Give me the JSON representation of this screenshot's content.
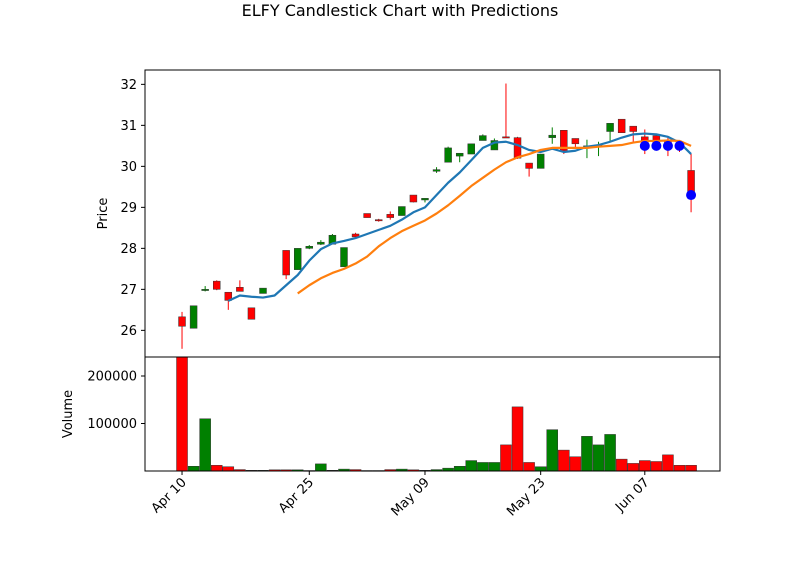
{
  "chart_data": {
    "type": "candlestick",
    "title": "ELFY Candlestick Chart with Predictions",
    "price_panel": {
      "ylabel": "Price",
      "ylim": [
        25.35,
        32.35
      ],
      "yticks": [
        26,
        27,
        28,
        29,
        30,
        31,
        32
      ],
      "up_color": "#008000",
      "down_color": "#ff0000",
      "candles": [
        {
          "x": 0,
          "open": 26.33,
          "close": 26.1,
          "high": 26.45,
          "low": 25.55
        },
        {
          "x": 1,
          "open": 26.05,
          "close": 26.6,
          "high": 26.6,
          "low": 26.05
        },
        {
          "x": 2,
          "open": 26.98,
          "close": 27.0,
          "high": 27.08,
          "low": 26.95
        },
        {
          "x": 3,
          "open": 27.2,
          "close": 27.0,
          "high": 27.22,
          "low": 26.98
        },
        {
          "x": 4,
          "open": 26.93,
          "close": 26.73,
          "high": 26.93,
          "low": 26.5
        },
        {
          "x": 5,
          "open": 27.05,
          "close": 26.95,
          "high": 27.22,
          "low": 26.95
        },
        {
          "x": 6,
          "open": 26.55,
          "close": 26.27,
          "high": 26.55,
          "low": 26.27
        },
        {
          "x": 7,
          "open": 26.9,
          "close": 27.03,
          "high": 27.03,
          "low": 26.9
        },
        {
          "x": 9,
          "open": 27.95,
          "close": 27.35,
          "high": 27.95,
          "low": 27.25
        },
        {
          "x": 10,
          "open": 27.48,
          "close": 28.0,
          "high": 28.0,
          "low": 27.48
        },
        {
          "x": 11,
          "open": 28.0,
          "close": 28.05,
          "high": 28.08,
          "low": 27.98
        },
        {
          "x": 12,
          "open": 28.1,
          "close": 28.15,
          "high": 28.2,
          "low": 28.08
        },
        {
          "x": 13,
          "open": 28.1,
          "close": 28.32,
          "high": 28.35,
          "low": 28.1
        },
        {
          "x": 14,
          "open": 27.55,
          "close": 28.02,
          "high": 28.02,
          "low": 27.55
        },
        {
          "x": 15,
          "open": 28.35,
          "close": 28.28,
          "high": 28.38,
          "low": 28.25
        },
        {
          "x": 16,
          "open": 28.85,
          "close": 28.75,
          "high": 28.85,
          "low": 28.75
        },
        {
          "x": 17,
          "open": 28.7,
          "close": 28.68,
          "high": 28.72,
          "low": 28.65
        },
        {
          "x": 18,
          "open": 28.83,
          "close": 28.75,
          "high": 28.9,
          "low": 28.7
        },
        {
          "x": 19,
          "open": 28.8,
          "close": 29.02,
          "high": 29.02,
          "low": 28.8
        },
        {
          "x": 20,
          "open": 29.3,
          "close": 29.13,
          "high": 29.3,
          "low": 29.12
        },
        {
          "x": 21,
          "open": 29.18,
          "close": 29.22,
          "high": 29.22,
          "low": 29.12
        },
        {
          "x": 22,
          "open": 29.88,
          "close": 29.92,
          "high": 29.98,
          "low": 29.84
        },
        {
          "x": 23,
          "open": 30.1,
          "close": 30.45,
          "high": 30.48,
          "low": 30.1
        },
        {
          "x": 24,
          "open": 30.25,
          "close": 30.32,
          "high": 30.32,
          "low": 30.1
        },
        {
          "x": 25,
          "open": 30.3,
          "close": 30.55,
          "high": 30.55,
          "low": 30.3
        },
        {
          "x": 26,
          "open": 30.63,
          "close": 30.75,
          "high": 30.78,
          "low": 30.63
        },
        {
          "x": 27,
          "open": 30.4,
          "close": 30.63,
          "high": 30.68,
          "low": 30.4
        },
        {
          "x": 28,
          "open": 30.72,
          "close": 30.7,
          "high": 32.02,
          "low": 30.7
        },
        {
          "x": 29,
          "open": 30.7,
          "close": 30.2,
          "high": 30.72,
          "low": 30.18
        },
        {
          "x": 30,
          "open": 30.08,
          "close": 29.95,
          "high": 30.08,
          "low": 29.75
        },
        {
          "x": 31,
          "open": 29.95,
          "close": 30.3,
          "high": 30.3,
          "low": 29.95
        },
        {
          "x": 32,
          "open": 30.7,
          "close": 30.76,
          "high": 30.95,
          "low": 30.55
        },
        {
          "x": 33,
          "open": 30.88,
          "close": 30.38,
          "high": 30.88,
          "low": 30.3
        },
        {
          "x": 34,
          "open": 30.68,
          "close": 30.55,
          "high": 30.68,
          "low": 30.45
        },
        {
          "x": 35,
          "open": 30.45,
          "close": 30.5,
          "high": 30.65,
          "low": 30.2
        },
        {
          "x": 36,
          "open": 30.5,
          "close": 30.52,
          "high": 30.6,
          "low": 30.25
        },
        {
          "x": 37,
          "open": 30.85,
          "close": 31.05,
          "high": 31.05,
          "low": 30.6
        },
        {
          "x": 38,
          "open": 31.15,
          "close": 30.82,
          "high": 31.15,
          "low": 30.82
        },
        {
          "x": 39,
          "open": 30.98,
          "close": 30.85,
          "high": 30.98,
          "low": 30.6
        },
        {
          "x": 40,
          "open": 30.72,
          "close": 30.5,
          "high": 30.9,
          "low": 30.3
        },
        {
          "x": 41,
          "open": 30.75,
          "close": 30.5,
          "high": 30.75,
          "low": 30.4
        },
        {
          "x": 42,
          "open": 30.62,
          "close": 30.52,
          "high": 30.72,
          "low": 30.25
        },
        {
          "x": 43,
          "open": 30.58,
          "close": 30.48,
          "high": 30.62,
          "low": 30.35
        },
        {
          "x": 44,
          "open": 29.9,
          "close": 29.3,
          "high": 30.3,
          "low": 28.88
        }
      ],
      "series": [
        {
          "name": "",
          "color": "#1f77b4",
          "points": [
            [
              4,
              26.72
            ],
            [
              5,
              26.85
            ],
            [
              6,
              26.82
            ],
            [
              7,
              26.8
            ],
            [
              8,
              26.85
            ],
            [
              9,
              27.1
            ],
            [
              10,
              27.35
            ],
            [
              11,
              27.7
            ],
            [
              12,
              27.98
            ],
            [
              13,
              28.12
            ],
            [
              14,
              28.18
            ],
            [
              15,
              28.25
            ],
            [
              16,
              28.35
            ],
            [
              17,
              28.45
            ],
            [
              18,
              28.55
            ],
            [
              19,
              28.7
            ],
            [
              20,
              28.88
            ],
            [
              21,
              29.0
            ],
            [
              22,
              29.3
            ],
            [
              23,
              29.6
            ],
            [
              24,
              29.85
            ],
            [
              25,
              30.15
            ],
            [
              26,
              30.45
            ],
            [
              27,
              30.58
            ],
            [
              28,
              30.6
            ],
            [
              29,
              30.52
            ],
            [
              30,
              30.4
            ],
            [
              31,
              30.35
            ],
            [
              32,
              30.43
            ],
            [
              33,
              30.35
            ],
            [
              34,
              30.38
            ],
            [
              35,
              30.48
            ],
            [
              36,
              30.52
            ],
            [
              37,
              30.6
            ],
            [
              38,
              30.7
            ],
            [
              39,
              30.78
            ],
            [
              40,
              30.8
            ],
            [
              41,
              30.78
            ],
            [
              42,
              30.72
            ],
            [
              43,
              30.58
            ],
            [
              44,
              30.3
            ]
          ]
        },
        {
          "name": "",
          "color": "#ff7f0e",
          "points": [
            [
              10,
              26.9
            ],
            [
              11,
              27.1
            ],
            [
              12,
              27.27
            ],
            [
              13,
              27.4
            ],
            [
              14,
              27.5
            ],
            [
              15,
              27.63
            ],
            [
              16,
              27.8
            ],
            [
              17,
              28.05
            ],
            [
              18,
              28.25
            ],
            [
              19,
              28.42
            ],
            [
              20,
              28.55
            ],
            [
              21,
              28.68
            ],
            [
              22,
              28.85
            ],
            [
              23,
              29.05
            ],
            [
              24,
              29.28
            ],
            [
              25,
              29.52
            ],
            [
              26,
              29.72
            ],
            [
              27,
              29.92
            ],
            [
              28,
              30.1
            ],
            [
              29,
              30.22
            ],
            [
              30,
              30.3
            ],
            [
              31,
              30.4
            ],
            [
              32,
              30.45
            ],
            [
              33,
              30.45
            ],
            [
              34,
              30.45
            ],
            [
              35,
              30.45
            ],
            [
              36,
              30.48
            ],
            [
              37,
              30.5
            ],
            [
              38,
              30.52
            ],
            [
              39,
              30.58
            ],
            [
              40,
              30.62
            ],
            [
              41,
              30.62
            ],
            [
              42,
              30.63
            ],
            [
              43,
              30.62
            ],
            [
              44,
              30.5
            ]
          ]
        }
      ],
      "predictions": {
        "color": "#0000ff",
        "points": [
          [
            40,
            30.5
          ],
          [
            41,
            30.5
          ],
          [
            42,
            30.5
          ],
          [
            43,
            30.5
          ],
          [
            44,
            29.3
          ]
        ]
      }
    },
    "volume_panel": {
      "ylabel": "Volume",
      "ylim": [
        0,
        240000
      ],
      "yticks": [
        100000,
        200000
      ],
      "ytick_labels": [
        "100000",
        "200000"
      ],
      "bars": [
        {
          "x": 0,
          "v": 240000,
          "up": false
        },
        {
          "x": 1,
          "v": 10000,
          "up": true
        },
        {
          "x": 2,
          "v": 110000,
          "up": true
        },
        {
          "x": 3,
          "v": 12000,
          "up": false
        },
        {
          "x": 4,
          "v": 9000,
          "up": false
        },
        {
          "x": 5,
          "v": 3000,
          "up": false
        },
        {
          "x": 6,
          "v": 1500,
          "up": false
        },
        {
          "x": 7,
          "v": 1500,
          "up": true
        },
        {
          "x": 8,
          "v": 2500,
          "up": false
        },
        {
          "x": 9,
          "v": 2500,
          "up": false
        },
        {
          "x": 10,
          "v": 2500,
          "up": true
        },
        {
          "x": 11,
          "v": 1000,
          "up": true
        },
        {
          "x": 12,
          "v": 15000,
          "up": true
        },
        {
          "x": 13,
          "v": 1500,
          "up": true
        },
        {
          "x": 14,
          "v": 4000,
          "up": true
        },
        {
          "x": 15,
          "v": 3000,
          "up": false
        },
        {
          "x": 16,
          "v": 1000,
          "up": false
        },
        {
          "x": 17,
          "v": 1000,
          "up": false
        },
        {
          "x": 18,
          "v": 3000,
          "up": false
        },
        {
          "x": 19,
          "v": 4000,
          "up": true
        },
        {
          "x": 20,
          "v": 2500,
          "up": false
        },
        {
          "x": 21,
          "v": 1500,
          "up": true
        },
        {
          "x": 22,
          "v": 3000,
          "up": true
        },
        {
          "x": 23,
          "v": 6000,
          "up": true
        },
        {
          "x": 24,
          "v": 10000,
          "up": true
        },
        {
          "x": 25,
          "v": 22000,
          "up": true
        },
        {
          "x": 26,
          "v": 18000,
          "up": true
        },
        {
          "x": 27,
          "v": 18000,
          "up": true
        },
        {
          "x": 28,
          "v": 55000,
          "up": false
        },
        {
          "x": 29,
          "v": 135000,
          "up": false
        },
        {
          "x": 30,
          "v": 18000,
          "up": false
        },
        {
          "x": 31,
          "v": 9000,
          "up": true
        },
        {
          "x": 32,
          "v": 87000,
          "up": true
        },
        {
          "x": 33,
          "v": 44000,
          "up": false
        },
        {
          "x": 34,
          "v": 30000,
          "up": false
        },
        {
          "x": 35,
          "v": 73000,
          "up": true
        },
        {
          "x": 36,
          "v": 55000,
          "up": true
        },
        {
          "x": 37,
          "v": 77000,
          "up": true
        },
        {
          "x": 38,
          "v": 25000,
          "up": false
        },
        {
          "x": 39,
          "v": 16000,
          "up": false
        },
        {
          "x": 40,
          "v": 22000,
          "up": false
        },
        {
          "x": 41,
          "v": 20000,
          "up": false
        },
        {
          "x": 42,
          "v": 34000,
          "up": false
        },
        {
          "x": 43,
          "v": 12000,
          "up": false
        },
        {
          "x": 44,
          "v": 12000,
          "up": false
        }
      ]
    },
    "xaxis": {
      "xlim": [
        -3.2,
        46.5
      ],
      "ticks": [
        {
          "x": 0,
          "label": "Apr 10"
        },
        {
          "x": 11,
          "label": "Apr 25"
        },
        {
          "x": 21,
          "label": "May 09"
        },
        {
          "x": 31,
          "label": "May 23"
        },
        {
          "x": 40,
          "label": "Jun 07"
        }
      ]
    },
    "grid": false
  }
}
